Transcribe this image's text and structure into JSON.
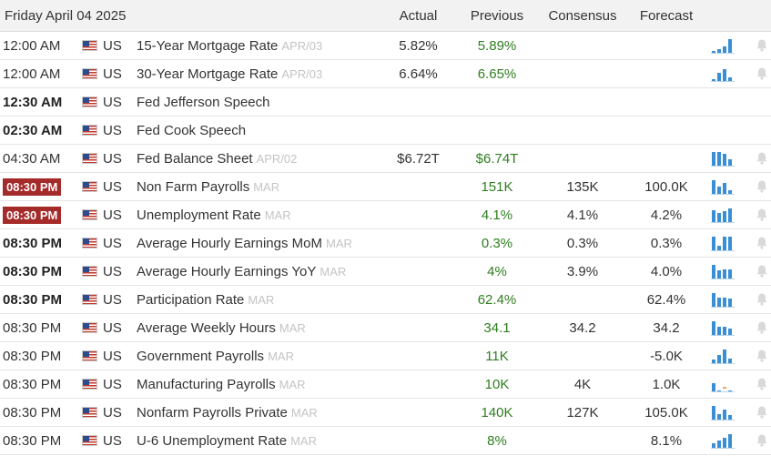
{
  "header": {
    "date": "Friday April 04 2025",
    "col_actual": "Actual",
    "col_previous": "Previous",
    "col_consensus": "Consensus",
    "col_forecast": "Forecast"
  },
  "colors": {
    "badge": "#a52a2a",
    "previous": "#2e7d1f",
    "chart_bar": "#3a8fd4",
    "period": "#c4c4c4"
  },
  "rows": [
    {
      "time": "12:00 AM",
      "time_style": "normal",
      "country": "US",
      "event": "15-Year Mortgage Rate",
      "period": "APR/03",
      "actual": "5.82%",
      "previous": "5.89%",
      "consensus": "",
      "forecast": "",
      "chart_levels": [
        0.2,
        0.3,
        0.5,
        1.0
      ],
      "bell_icon": "bell-icon"
    },
    {
      "time": "12:00 AM",
      "time_style": "normal",
      "country": "US",
      "event": "30-Year Mortgage Rate",
      "period": "APR/03",
      "actual": "6.64%",
      "previous": "6.65%",
      "consensus": "",
      "forecast": "",
      "chart_levels": [
        0.2,
        0.6,
        0.9,
        0.3
      ],
      "bell_icon": "bell-icon"
    },
    {
      "time": "12:30 AM",
      "time_style": "bold",
      "country": "US",
      "event": "Fed Jefferson Speech",
      "period": "",
      "actual": "",
      "previous": "",
      "consensus": "",
      "forecast": "",
      "chart_levels": [],
      "bell_icon": ""
    },
    {
      "time": "02:30 AM",
      "time_style": "bold",
      "country": "US",
      "event": "Fed Cook Speech",
      "period": "",
      "actual": "",
      "previous": "",
      "consensus": "",
      "forecast": "",
      "chart_levels": [],
      "bell_icon": ""
    },
    {
      "time": "04:30 AM",
      "time_style": "normal",
      "country": "US",
      "event": "Fed Balance Sheet",
      "period": "APR/02",
      "actual": "$6.72T",
      "previous": "$6.74T",
      "consensus": "",
      "forecast": "",
      "chart_levels": [
        1.0,
        1.0,
        0.85,
        0.5
      ],
      "bell_icon": "bell-icon"
    },
    {
      "time": "08:30 PM",
      "time_style": "badge",
      "country": "US",
      "event": "Non Farm Payrolls",
      "period": "MAR",
      "actual": "",
      "previous": "151K",
      "consensus": "135K",
      "forecast": "100.0K",
      "chart_levels": [
        1.0,
        0.55,
        0.8,
        0.3
      ],
      "bell_icon": "bell-icon"
    },
    {
      "time": "08:30 PM",
      "time_style": "badge",
      "country": "US",
      "event": "Unemployment Rate",
      "period": "MAR",
      "actual": "",
      "previous": "4.1%",
      "consensus": "4.1%",
      "forecast": "4.2%",
      "chart_levels": [
        0.9,
        0.7,
        0.8,
        1.0
      ],
      "bell_icon": "bell-icon"
    },
    {
      "time": "08:30 PM",
      "time_style": "bold",
      "country": "US",
      "event": "Average Hourly Earnings MoM",
      "period": "MAR",
      "actual": "",
      "previous": "0.3%",
      "consensus": "0.3%",
      "forecast": "0.3%",
      "chart_levels": [
        1.0,
        0.4,
        1.0,
        1.0
      ],
      "bell_icon": "bell-icon"
    },
    {
      "time": "08:30 PM",
      "time_style": "bold",
      "country": "US",
      "event": "Average Hourly Earnings YoY",
      "period": "MAR",
      "actual": "",
      "previous": "4%",
      "consensus": "3.9%",
      "forecast": "4.0%",
      "chart_levels": [
        1.0,
        0.6,
        0.7,
        0.7
      ],
      "bell_icon": "bell-icon"
    },
    {
      "time": "08:30 PM",
      "time_style": "bold",
      "country": "US",
      "event": "Participation Rate",
      "period": "MAR",
      "actual": "",
      "previous": "62.4%",
      "consensus": "",
      "forecast": "62.4%",
      "chart_levels": [
        1.0,
        0.7,
        0.7,
        0.6
      ],
      "bell_icon": "bell-icon"
    },
    {
      "time": "08:30 PM",
      "time_style": "normal",
      "country": "US",
      "event": "Average Weekly Hours",
      "period": "MAR",
      "actual": "",
      "previous": "34.1",
      "consensus": "34.2",
      "forecast": "34.2",
      "chart_levels": [
        1.0,
        0.6,
        0.6,
        0.5
      ],
      "bell_icon": "bell-icon"
    },
    {
      "time": "08:30 PM",
      "time_style": "normal",
      "country": "US",
      "event": "Government Payrolls",
      "period": "MAR",
      "actual": "",
      "previous": "11K",
      "consensus": "",
      "forecast": "-5.0K",
      "chart_levels": [
        0.3,
        0.6,
        1.0,
        0.4
      ],
      "bell_icon": "bell-icon"
    },
    {
      "time": "08:30 PM",
      "time_style": "normal",
      "country": "US",
      "event": "Manufacturing Payrolls",
      "period": "MAR",
      "actual": "",
      "previous": "10K",
      "consensus": "4K",
      "forecast": "1.0K",
      "chart_levels": [
        0.6,
        0.15,
        -0.15,
        0.15
      ],
      "bell_icon": "bell-icon"
    },
    {
      "time": "08:30 PM",
      "time_style": "normal",
      "country": "US",
      "event": "Nonfarm Payrolls Private",
      "period": "MAR",
      "actual": "",
      "previous": "140K",
      "consensus": "127K",
      "forecast": "105.0K",
      "chart_levels": [
        1.0,
        0.45,
        0.75,
        0.35
      ],
      "bell_icon": "bell-icon"
    },
    {
      "time": "08:30 PM",
      "time_style": "normal",
      "country": "US",
      "event": "U-6 Unemployment Rate",
      "period": "MAR",
      "actual": "",
      "previous": "8%",
      "consensus": "",
      "forecast": "8.1%",
      "chart_levels": [
        0.4,
        0.55,
        0.75,
        1.0
      ],
      "bell_icon": "bell-icon"
    }
  ]
}
